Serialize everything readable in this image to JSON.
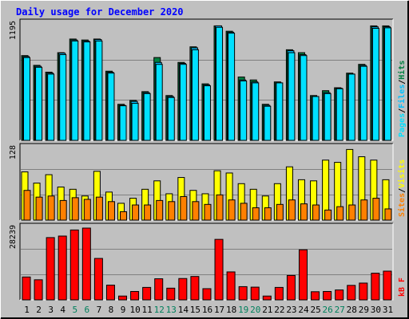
{
  "title": "Daily usage for December 2020",
  "colors": {
    "background": "#c0c0c0",
    "title": "#0000ff",
    "hits": "#008040",
    "files": "#00c0ff",
    "pages": "#00e0ff",
    "visits": "#ffff00",
    "sites": "#ff8000",
    "kbytes": "#ff0000",
    "weekend_label": "#00805c",
    "weekday_label": "#000000"
  },
  "chart_data": [
    {
      "type": "bar",
      "title": "Daily usage for December 2020",
      "ylabel_max": "1195",
      "legend": [
        {
          "label": "Pages",
          "color": "#00e0ff"
        },
        {
          "label": "Files",
          "color": "#00c0ff"
        },
        {
          "label": "Hits",
          "color": "#008040"
        }
      ],
      "legend_separator": "/",
      "ylim": [
        0,
        1195
      ],
      "categories": [
        "1",
        "2",
        "3",
        "4",
        "5",
        "6",
        "7",
        "8",
        "9",
        "10",
        "11",
        "12",
        "13",
        "14",
        "15",
        "16",
        "17",
        "18",
        "19",
        "20",
        "21",
        "22",
        "23",
        "24",
        "25",
        "26",
        "27",
        "28",
        "29",
        "30",
        "31"
      ],
      "weekend_days": [
        "5",
        "6",
        "12",
        "13",
        "19",
        "20",
        "26",
        "27"
      ],
      "series": [
        {
          "name": "Hits",
          "values": [
            870,
            770,
            700,
            900,
            1040,
            1030,
            1040,
            710,
            370,
            410,
            500,
            850,
            460,
            800,
            960,
            580,
            1175,
            1120,
            650,
            620,
            370,
            600,
            930,
            900,
            460,
            510,
            540,
            690,
            780,
            1175,
            1175
          ]
        },
        {
          "name": "Files",
          "values": [
            860,
            760,
            690,
            895,
            1030,
            1020,
            1035,
            700,
            360,
            400,
            490,
            800,
            450,
            790,
            950,
            570,
            1175,
            1110,
            620,
            600,
            360,
            590,
            920,
            880,
            450,
            490,
            535,
            680,
            770,
            1165,
            1165
          ]
        },
        {
          "name": "Pages",
          "values": [
            850,
            750,
            680,
            880,
            1020,
            1010,
            1020,
            690,
            355,
            380,
            480,
            780,
            440,
            780,
            930,
            560,
            1160,
            1100,
            610,
            590,
            350,
            590,
            900,
            870,
            450,
            480,
            530,
            680,
            760,
            1150,
            1155
          ]
        }
      ]
    },
    {
      "type": "bar",
      "ylabel_max": "128",
      "legend": [
        {
          "label": "Sites",
          "color": "#ff8000"
        },
        {
          "label": "Visits",
          "color": "#ffff00"
        }
      ],
      "legend_separator": "/",
      "ylim": [
        0,
        128
      ],
      "categories": [
        "1",
        "2",
        "3",
        "4",
        "5",
        "6",
        "7",
        "8",
        "9",
        "10",
        "11",
        "12",
        "13",
        "14",
        "15",
        "16",
        "17",
        "18",
        "19",
        "20",
        "21",
        "22",
        "23",
        "24",
        "25",
        "26",
        "27",
        "28",
        "29",
        "30",
        "31"
      ],
      "series": [
        {
          "name": "Visits",
          "values": [
            86,
            66,
            81,
            59,
            55,
            43,
            87,
            50,
            30,
            39,
            55,
            70,
            47,
            76,
            53,
            47,
            88,
            84,
            65,
            55,
            43,
            65,
            95,
            72,
            70,
            107,
            103,
            126,
            113,
            107,
            72
          ]
        },
        {
          "name": "Sites",
          "values": [
            53,
            41,
            43,
            35,
            40,
            37,
            41,
            33,
            15,
            27,
            27,
            35,
            33,
            42,
            33,
            28,
            45,
            36,
            30,
            22,
            22,
            28,
            36,
            29,
            27,
            18,
            24,
            27,
            36,
            39,
            20
          ]
        }
      ]
    },
    {
      "type": "bar",
      "ylabel_max": "28239",
      "legend": [
        {
          "label": "KBytes",
          "color": "#ff0000"
        }
      ],
      "ylim": [
        0,
        28239
      ],
      "categories": [
        "1",
        "2",
        "3",
        "4",
        "5",
        "6",
        "7",
        "8",
        "9",
        "10",
        "11",
        "12",
        "13",
        "14",
        "15",
        "16",
        "17",
        "18",
        "19",
        "20",
        "21",
        "22",
        "23",
        "24",
        "25",
        "26",
        "27",
        "28",
        "29",
        "30",
        "31"
      ],
      "series": [
        {
          "name": "KBytes",
          "values": [
            9000,
            7900,
            24500,
            25100,
            27500,
            28239,
            16300,
            5800,
            1500,
            3300,
            4900,
            8300,
            4600,
            8400,
            9200,
            4400,
            23800,
            11000,
            5200,
            5000,
            1500,
            4900,
            9600,
            19700,
            3200,
            3300,
            3900,
            5700,
            6600,
            10500,
            11300
          ]
        }
      ]
    }
  ]
}
